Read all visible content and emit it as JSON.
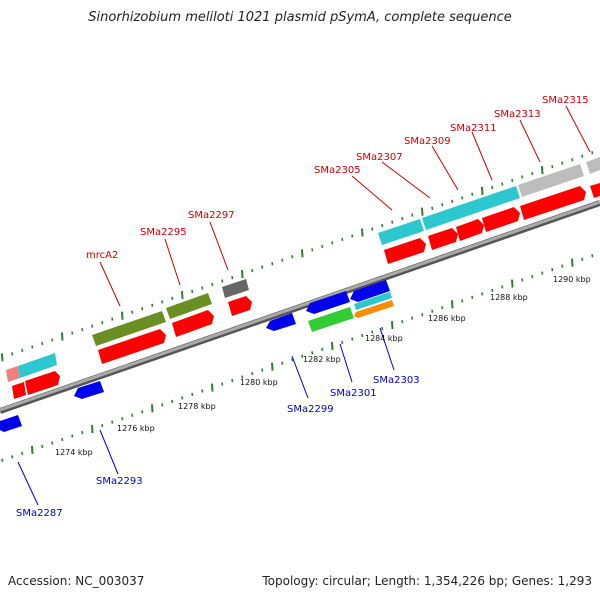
{
  "title": "Sinorhizobium meliloti 1021 plasmid pSymA, complete sequence",
  "footer": {
    "accession": "Accession: NC_003037",
    "summary": "Topology: circular; Length: 1,354,226 bp; Genes: 1,293"
  },
  "colors": {
    "forward_label": "#cc0000",
    "reverse_label": "#0000cc",
    "backbone": "#888888",
    "tick": "#2e7d32",
    "cds_forward": "#ff0000",
    "cds_reverse": "#0000ee",
    "cds_cyan": "#2cc7cf",
    "cds_olive": "#6b8e23",
    "cds_gray": "#bdbdbd",
    "cds_dark": "#666666",
    "cds_green": "#33cc33",
    "cds_orange": "#ff8c00",
    "cds_pink": "#f08080"
  },
  "kbp_labels": [
    "1274 kbp",
    "1276 kbp",
    "1278 kbp",
    "1280 kbp",
    "1282 kbp",
    "1284 kbp",
    "1286 kbp",
    "1288 kbp",
    "1290 kbp"
  ],
  "forward_genes": [
    "mrcA2",
    "SMa2295",
    "SMa2297",
    "SMa2305",
    "SMa2307",
    "SMa2309",
    "SMa2311",
    "SMa2313",
    "SMa2315"
  ],
  "reverse_genes": [
    "SMa2287",
    "SMa2293",
    "SMa2299",
    "SMa2301",
    "SMa2303"
  ]
}
